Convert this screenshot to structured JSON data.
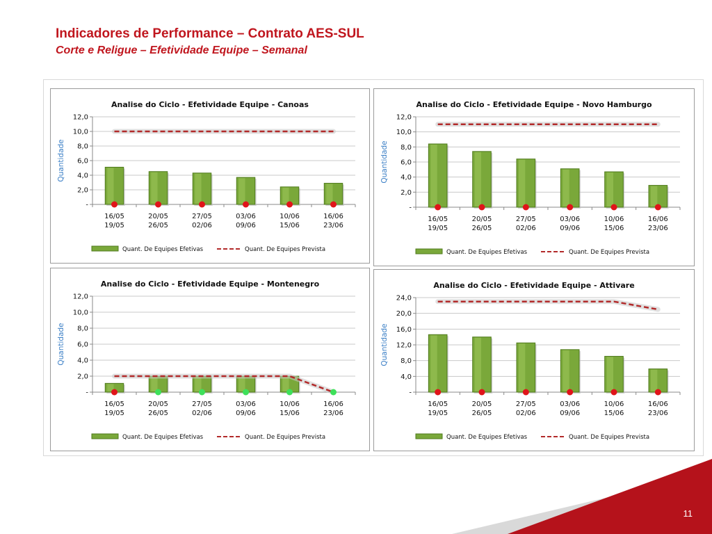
{
  "header": {
    "title": "Indicadores de Performance – Contrato AES-SUL",
    "subtitle": "Corte e Religue – Efetividade Equipe – Semanal"
  },
  "footer": {
    "page_number": "11"
  },
  "colors": {
    "title_red": "#c0161e",
    "bar_green": "#7aa83a",
    "planned_line": "#b22a2a",
    "dot_red": "#e0141a",
    "dot_green": "#3ee05a",
    "corner_red": "#b5121b"
  },
  "chart_data": [
    {
      "type": "bar",
      "title": "Analise do Ciclo - Efetividade  Equipe - Canoas",
      "ylabel": "Quantidade",
      "ylim": [
        0,
        12
      ],
      "yticks": [
        "-",
        "2,0",
        "4,0",
        "6,0",
        "8,0",
        "10,0",
        "12,0"
      ],
      "categories": [
        [
          "16/05",
          "19/05"
        ],
        [
          "20/05",
          "26/05"
        ],
        [
          "27/05",
          "02/06"
        ],
        [
          "03/06",
          "09/06"
        ],
        [
          "10/06",
          "15/06"
        ],
        [
          "16/06",
          "23/06"
        ]
      ],
      "series": [
        {
          "name": "Quant. De Equipes Efetivas",
          "kind": "bar",
          "values": [
            5.1,
            4.5,
            4.3,
            3.7,
            2.4,
            2.9
          ]
        },
        {
          "name": "Quant. De Equipes Prevista",
          "kind": "line",
          "values": [
            10,
            10,
            10,
            10,
            10,
            10
          ]
        }
      ],
      "markers": [
        "red",
        "red",
        "red",
        "red",
        "red",
        "red"
      ]
    },
    {
      "type": "bar",
      "title": "Analise do Ciclo - Efetividade  Equipe - Novo Hamburgo",
      "ylabel": "Quantidade",
      "ylim": [
        0,
        12
      ],
      "yticks": [
        "-",
        "2,0",
        "4,0",
        "6,0",
        "8,0",
        "10,0",
        "12,0"
      ],
      "categories": [
        [
          "16/05",
          "19/05"
        ],
        [
          "20/05",
          "26/05"
        ],
        [
          "27/05",
          "02/06"
        ],
        [
          "03/06",
          "09/06"
        ],
        [
          "10/06",
          "15/06"
        ],
        [
          "16/06",
          "23/06"
        ]
      ],
      "series": [
        {
          "name": "Quant. De Equipes Efetivas",
          "kind": "bar",
          "values": [
            8.4,
            7.4,
            6.4,
            5.1,
            4.7,
            2.9
          ]
        },
        {
          "name": "Quant. De Equipes Prevista",
          "kind": "line",
          "values": [
            11,
            11,
            11,
            11,
            11,
            11
          ]
        }
      ],
      "markers": [
        "red",
        "red",
        "red",
        "red",
        "red",
        "red"
      ]
    },
    {
      "type": "bar",
      "title": "Analise do Ciclo - Efetividade  Equipe - Montenegro",
      "ylabel": "Quantidade",
      "ylim": [
        0,
        12
      ],
      "yticks": [
        "-",
        "2,0",
        "4,0",
        "6,0",
        "8,0",
        "10,0",
        "12,0"
      ],
      "categories": [
        [
          "16/05",
          "19/05"
        ],
        [
          "20/05",
          "26/05"
        ],
        [
          "27/05",
          "02/06"
        ],
        [
          "03/06",
          "09/06"
        ],
        [
          "10/06",
          "15/06"
        ],
        [
          "16/06",
          "23/06"
        ]
      ],
      "series": [
        {
          "name": "Quant. De Equipes Efetivas",
          "kind": "bar",
          "values": [
            1.1,
            2.0,
            2.0,
            2.0,
            2.0,
            0
          ]
        },
        {
          "name": "Quant. De Equipes Prevista",
          "kind": "line",
          "values": [
            2,
            2,
            2,
            2,
            2,
            0
          ]
        }
      ],
      "markers": [
        "red",
        "green",
        "green",
        "green",
        "green",
        "green"
      ]
    },
    {
      "type": "bar",
      "title": "Analise do Ciclo - Efetividade  Equipe - Attivare",
      "ylabel": "Quantidade",
      "ylim": [
        0,
        24
      ],
      "yticks": [
        "-",
        "4,0",
        "8,0",
        "12,0",
        "16,0",
        "20,0",
        "24,0"
      ],
      "categories": [
        [
          "16/05",
          "19/05"
        ],
        [
          "20/05",
          "26/05"
        ],
        [
          "27/05",
          "02/06"
        ],
        [
          "03/06",
          "09/06"
        ],
        [
          "10/06",
          "15/06"
        ],
        [
          "16/06",
          "23/06"
        ]
      ],
      "series": [
        {
          "name": "Quant. De Equipes Efetivas",
          "kind": "bar",
          "values": [
            14.6,
            14.0,
            12.5,
            10.8,
            9.1,
            5.9
          ]
        },
        {
          "name": "Quant. De Equipes Prevista",
          "kind": "line",
          "values": [
            23,
            23,
            23,
            23,
            23,
            21
          ]
        }
      ],
      "markers": [
        "red",
        "red",
        "red",
        "red",
        "red",
        "red"
      ]
    }
  ]
}
